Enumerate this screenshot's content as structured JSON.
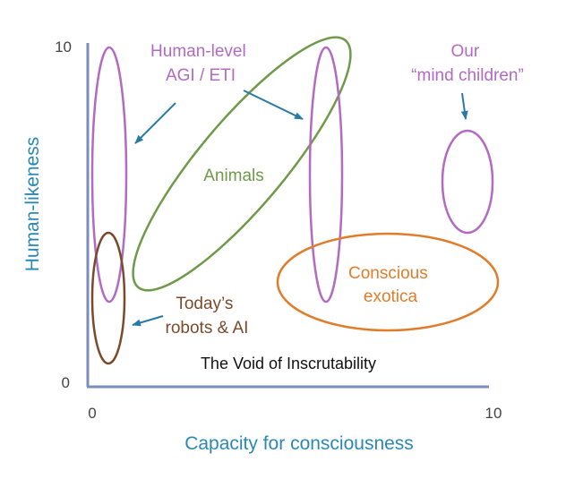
{
  "axes": {
    "x_label": "Capacity for consciousness",
    "y_label": "Human-likeness",
    "x_min": "0",
    "x_max": "10",
    "y_min": "0",
    "y_max": "10"
  },
  "regions": {
    "human_level": {
      "line1": "Human-level",
      "line2": "AGI / ETI"
    },
    "mind_children": {
      "line1": "Our",
      "line2": "“mind children”"
    },
    "animals": {
      "label": "Animals"
    },
    "conscious_exotica": {
      "line1": "Conscious",
      "line2": "exotica"
    },
    "robots": {
      "line1": "Today’s",
      "line2": "robots & AI"
    },
    "void": {
      "label": "The Void of Inscrutability"
    }
  },
  "colors": {
    "axis": "#7b8dbd",
    "axis_text": "#2b88b6",
    "tick_text": "#444444",
    "purple": "#b36ac3",
    "green": "#6f9a4a",
    "orange": "#e07d2a",
    "brown": "#7a4a2c",
    "arrow": "#2a7aa6"
  }
}
